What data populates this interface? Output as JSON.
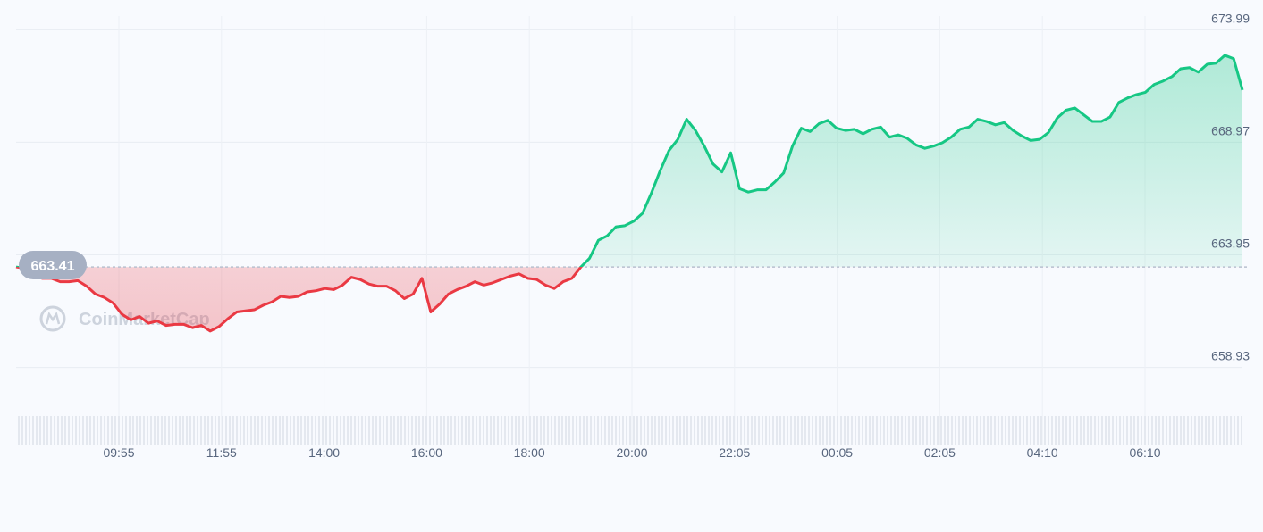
{
  "chart_data": {
    "type": "area",
    "watermark": "CoinMarketCap",
    "baseline_value": 663.41,
    "baseline_label": "663.41",
    "ylim": [
      657.6,
      674.6
    ],
    "y_ticks": [
      {
        "value": 673.99,
        "label": "673.99"
      },
      {
        "value": 668.97,
        "label": "668.97"
      },
      {
        "value": 663.95,
        "label": "663.95"
      },
      {
        "value": 658.93,
        "label": "658.93"
      }
    ],
    "x_ticks": [
      "09:55",
      "11:55",
      "14:00",
      "16:00",
      "18:00",
      "20:00",
      "22:05",
      "00:05",
      "02:05",
      "04:10",
      "06:10"
    ],
    "colors": {
      "up": "#16c784",
      "down": "#ea3943",
      "baseline": "#a6b0c3"
    },
    "series": [
      {
        "values": [
          663.41,
          663.35,
          663.0,
          662.9,
          662.9,
          662.75,
          662.75,
          662.8,
          662.55,
          662.2,
          662.05,
          661.8,
          661.3,
          661.05,
          661.2,
          660.9,
          661.0,
          660.8,
          660.85,
          660.85,
          660.7,
          660.8,
          660.55,
          660.75,
          661.1,
          661.4,
          661.45,
          661.5,
          661.7,
          661.85,
          662.1,
          662.05,
          662.1,
          662.3,
          662.35,
          662.45,
          662.4,
          662.6,
          662.95,
          662.85,
          662.65,
          662.55,
          662.55,
          662.35,
          662.0,
          662.2,
          662.9,
          661.4,
          661.75,
          662.2,
          662.4,
          662.55,
          662.75,
          662.6,
          662.7,
          662.85,
          663.0,
          663.1,
          662.9,
          662.85,
          662.6,
          662.45,
          662.75,
          662.9,
          663.4,
          663.8,
          664.6,
          664.8,
          665.2,
          665.25,
          665.45,
          665.8,
          666.7,
          667.7,
          668.6,
          669.1,
          670.0,
          669.5,
          668.8,
          668.0,
          667.65,
          668.5,
          666.9,
          666.75,
          666.85,
          666.85,
          667.2,
          667.6,
          668.8,
          669.6,
          669.45,
          669.8,
          669.95,
          669.6,
          669.5,
          669.55,
          669.35,
          669.55,
          669.65,
          669.2,
          669.3,
          669.15,
          668.85,
          668.7,
          668.8,
          668.95,
          669.2,
          669.55,
          669.65,
          670.0,
          669.9,
          669.75,
          669.85,
          669.5,
          669.25,
          669.05,
          669.1,
          669.4,
          670.05,
          670.4,
          670.5,
          670.2,
          669.9,
          669.9,
          670.1,
          670.75,
          670.95,
          671.1,
          671.2,
          671.55,
          671.7,
          671.9,
          672.25,
          672.3,
          672.1,
          672.45,
          672.5,
          672.85,
          672.7,
          671.3
        ]
      }
    ]
  }
}
